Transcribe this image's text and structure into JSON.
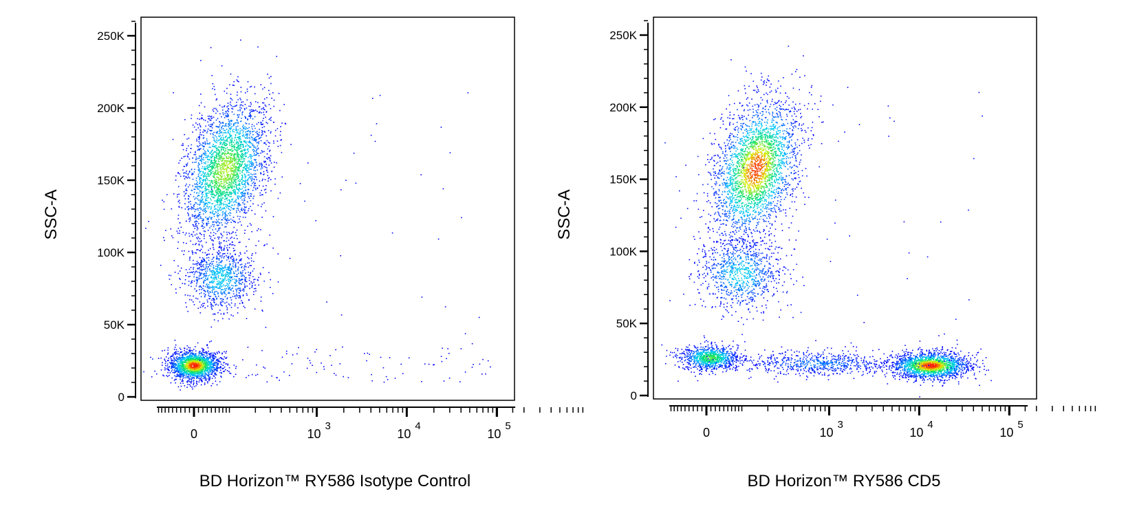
{
  "chart_data": [
    {
      "type": "scatter",
      "subtype": "density-dot-plot",
      "xlabel": "BD Horizon™ RY586 Isotype Control",
      "ylabel": "SSC-A",
      "x_scale": "biexponential",
      "x_ticks": [
        {
          "value": 0,
          "label": "0"
        },
        {
          "value": 1000,
          "label": "10",
          "exp": "3"
        },
        {
          "value": 10000,
          "label": "10",
          "exp": "4"
        },
        {
          "value": 100000,
          "label": "10",
          "exp": "5"
        }
      ],
      "y_ticks": [
        {
          "value": 0,
          "label": "0"
        },
        {
          "value": 50000,
          "label": "50K"
        },
        {
          "value": 100000,
          "label": "100K"
        },
        {
          "value": 150000,
          "label": "150K"
        },
        {
          "value": 200000,
          "label": "200K"
        },
        {
          "value": 250000,
          "label": "250K"
        }
      ],
      "ylim": [
        0,
        262000
      ],
      "colormap": [
        "#0000ff",
        "#00c8ff",
        "#00e070",
        "#e0f000",
        "#ff0000"
      ],
      "populations": [
        {
          "x_range": [
            -60,
            60
          ],
          "y_range": [
            12000,
            32000
          ],
          "events": 1800,
          "peak": 1.0
        },
        {
          "x_range": [
            -20,
            260
          ],
          "y_range": [
            110000,
            205000
          ],
          "events": 2800,
          "peak": 0.7
        },
        {
          "x_range": [
            -20,
            200
          ],
          "y_range": [
            60000,
            105000
          ],
          "events": 900,
          "peak": 0.3
        },
        {
          "x_range": [
            -80,
            90000
          ],
          "y_range": [
            10000,
            220000
          ],
          "events": 160,
          "peak": 0.0
        }
      ]
    },
    {
      "type": "scatter",
      "subtype": "density-dot-plot",
      "xlabel": "BD Horizon™ RY586 CD5",
      "ylabel": "SSC-A",
      "x_scale": "biexponential",
      "x_ticks": [
        {
          "value": 0,
          "label": "0"
        },
        {
          "value": 1000,
          "label": "10",
          "exp": "3"
        },
        {
          "value": 10000,
          "label": "10",
          "exp": "4"
        },
        {
          "value": 100000,
          "label": "10",
          "exp": "5"
        }
      ],
      "y_ticks": [
        {
          "value": 0,
          "label": "0"
        },
        {
          "value": 50000,
          "label": "50K"
        },
        {
          "value": 100000,
          "label": "100K"
        },
        {
          "value": 150000,
          "label": "150K"
        },
        {
          "value": 200000,
          "label": "200K"
        },
        {
          "value": 250000,
          "label": "250K"
        }
      ],
      "ylim": [
        0,
        262000
      ],
      "colormap": [
        "#0000ff",
        "#00c8ff",
        "#00e070",
        "#e0f000",
        "#ff0000"
      ],
      "populations": [
        {
          "x_range": [
            -60,
            80
          ],
          "y_range": [
            18000,
            35000
          ],
          "events": 900,
          "peak": 0.6
        },
        {
          "x_range": [
            20,
            420
          ],
          "y_range": [
            110000,
            205000
          ],
          "events": 2800,
          "peak": 0.95
        },
        {
          "x_range": [
            -20,
            300
          ],
          "y_range": [
            60000,
            110000
          ],
          "events": 900,
          "peak": 0.3
        },
        {
          "x_range": [
            5000,
            35000
          ],
          "y_range": [
            12000,
            30000
          ],
          "events": 1800,
          "peak": 1.0
        },
        {
          "x_range": [
            100,
            5000
          ],
          "y_range": [
            15000,
            30000
          ],
          "events": 600,
          "peak": 0.15
        },
        {
          "x_range": [
            -80,
            60000
          ],
          "y_range": [
            10000,
            220000
          ],
          "events": 160,
          "peak": 0.0
        }
      ]
    }
  ]
}
